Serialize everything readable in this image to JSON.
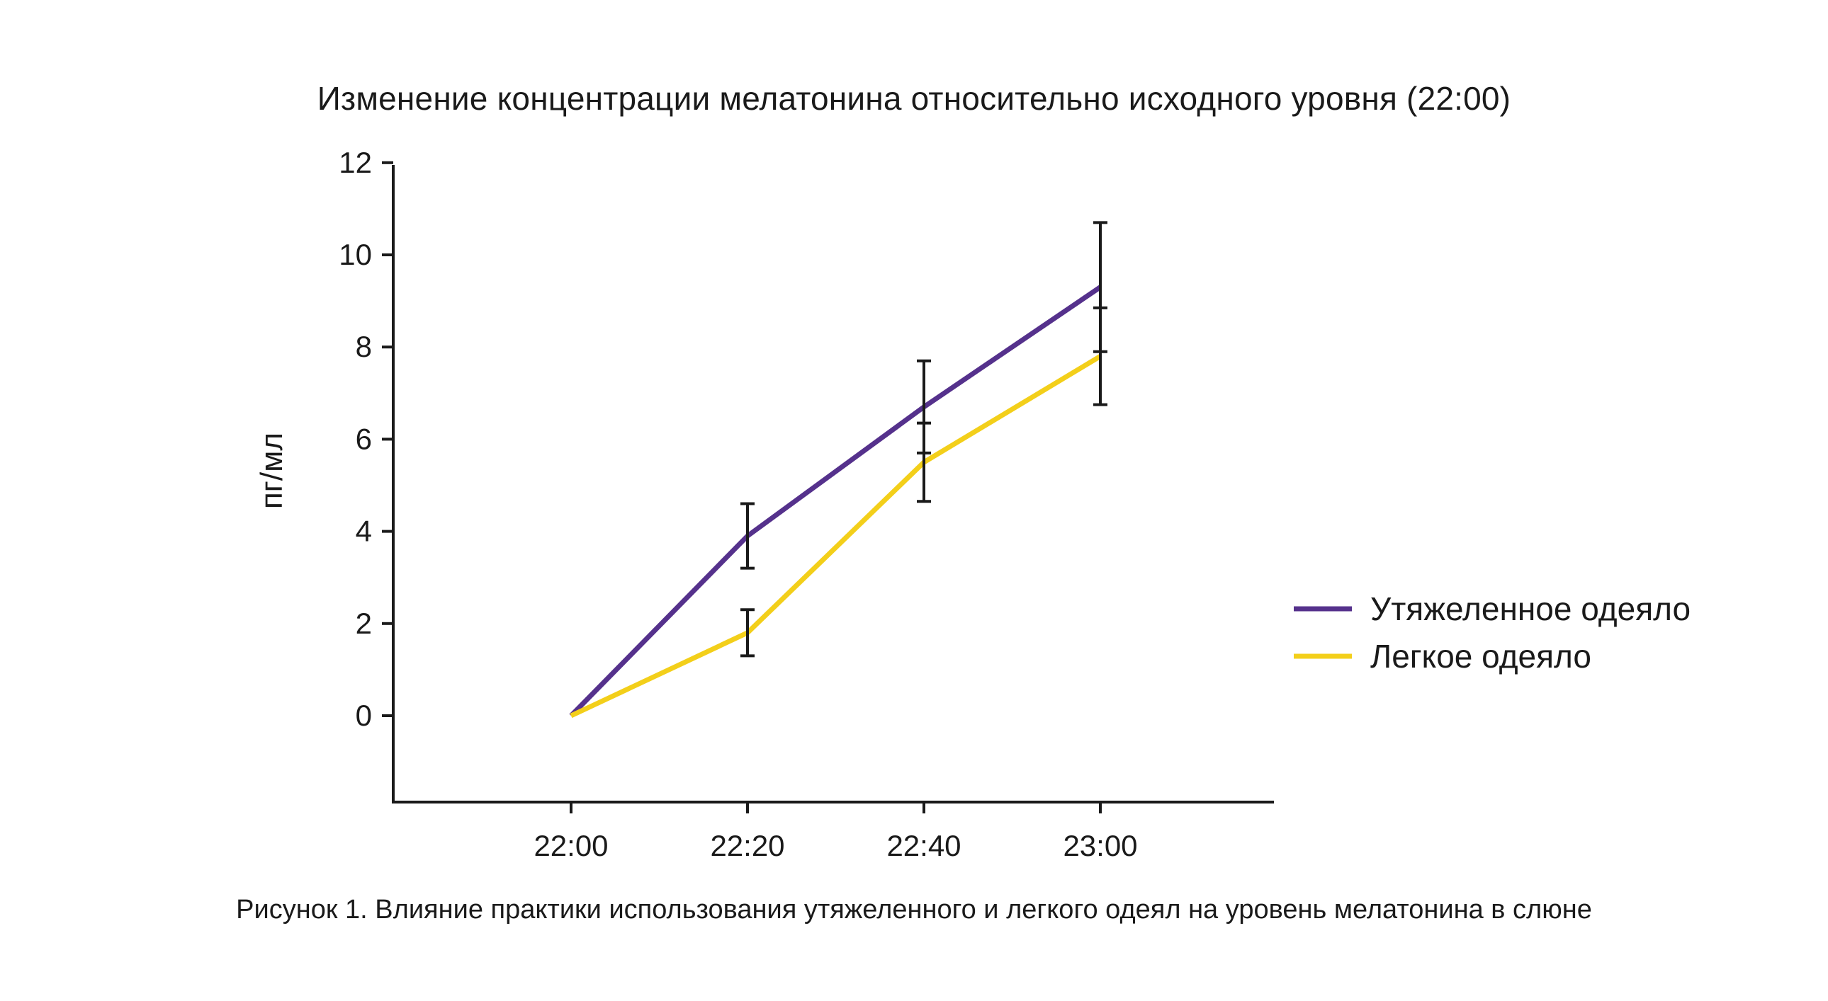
{
  "chart_data": {
    "type": "line",
    "title": "Изменение концентрации мелатонина относительно исходного уровня (22:00)",
    "xlabel": "",
    "ylabel": "пг/мл",
    "categories": [
      "22:00",
      "22:20",
      "22:40",
      "23:00"
    ],
    "yticks": [
      "0",
      "2",
      "4",
      "6",
      "8",
      "10",
      "12"
    ],
    "ylim": [
      -1.9,
      12
    ],
    "grid": false,
    "legend_position": "right",
    "series": [
      {
        "name": "Утяжеленное одеяло",
        "color": "#55318c",
        "values": [
          0,
          3.9,
          6.7,
          9.3
        ],
        "error": [
          null,
          0.7,
          1.0,
          1.4
        ]
      },
      {
        "name": "Легкое одеяло",
        "color": "#f3cf1a",
        "values": [
          0,
          1.8,
          5.5,
          7.8
        ],
        "error": [
          null,
          0.5,
          0.85,
          1.05
        ]
      }
    ]
  },
  "caption": "Рисунок 1. Влияние практики использования утяжеленного и легкого одеял на уровень мелатонина в слюне"
}
